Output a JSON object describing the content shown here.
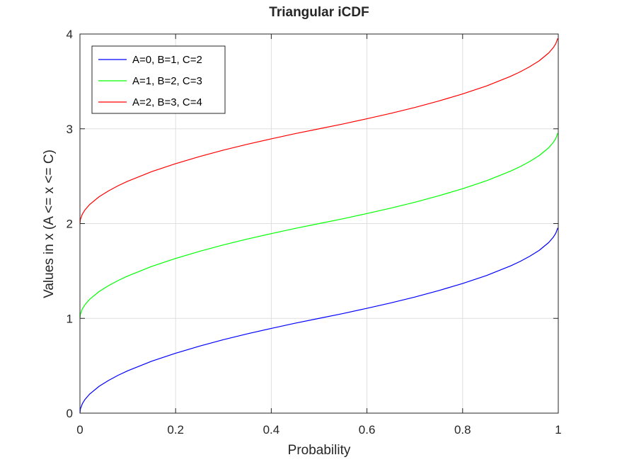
{
  "chart_data": {
    "type": "line",
    "title": "Triangular iCDF",
    "xlabel": "Probability",
    "ylabel": "Values in x (A <= x <= C)",
    "xlim": [
      0,
      1
    ],
    "ylim": [
      0,
      4
    ],
    "xticks": [
      0,
      0.2,
      0.4,
      0.6,
      0.8,
      1
    ],
    "xtick_labels": [
      "0",
      "0.2",
      "0.4",
      "0.6",
      "0.8",
      "1"
    ],
    "yticks": [
      0,
      1,
      2,
      3,
      4
    ],
    "ytick_labels": [
      "0",
      "1",
      "2",
      "3",
      "4"
    ],
    "grid": true,
    "legend_position": "top-left",
    "x": [
      0,
      0.001,
      0.005,
      0.01,
      0.02,
      0.04,
      0.06,
      0.08,
      0.1,
      0.15,
      0.2,
      0.25,
      0.3,
      0.35,
      0.4,
      0.45,
      0.5,
      0.55,
      0.6,
      0.65,
      0.7,
      0.75,
      0.8,
      0.85,
      0.9,
      0.92,
      0.94,
      0.96,
      0.98,
      0.99,
      0.995,
      0.999
    ],
    "series": [
      {
        "name": "A=0, B=1, C=2",
        "color": "#0000ff",
        "values": [
          0,
          0.045,
          0.1,
          0.141,
          0.2,
          0.283,
          0.346,
          0.4,
          0.447,
          0.548,
          0.632,
          0.707,
          0.775,
          0.837,
          0.894,
          0.949,
          1.0,
          1.051,
          1.106,
          1.163,
          1.225,
          1.293,
          1.368,
          1.452,
          1.553,
          1.6,
          1.654,
          1.717,
          1.8,
          1.859,
          1.9,
          1.955
        ]
      },
      {
        "name": "A=1, B=2, C=3",
        "color": "#00ff00",
        "values": [
          1.0,
          1.045,
          1.1,
          1.141,
          1.2,
          1.283,
          1.346,
          1.4,
          1.447,
          1.548,
          1.632,
          1.707,
          1.775,
          1.837,
          1.894,
          1.949,
          2.0,
          2.051,
          2.106,
          2.163,
          2.225,
          2.293,
          2.368,
          2.452,
          2.553,
          2.6,
          2.654,
          2.717,
          2.8,
          2.859,
          2.9,
          2.955
        ]
      },
      {
        "name": "A=2, B=3, C=4",
        "color": "#ff0000",
        "values": [
          2.0,
          2.045,
          2.1,
          2.141,
          2.2,
          2.283,
          2.346,
          2.4,
          2.447,
          2.548,
          2.632,
          2.707,
          2.775,
          2.837,
          2.894,
          2.949,
          3.0,
          3.051,
          3.106,
          3.163,
          3.225,
          3.293,
          3.368,
          3.452,
          3.553,
          3.6,
          3.654,
          3.717,
          3.8,
          3.859,
          3.9,
          3.955
        ]
      }
    ]
  }
}
